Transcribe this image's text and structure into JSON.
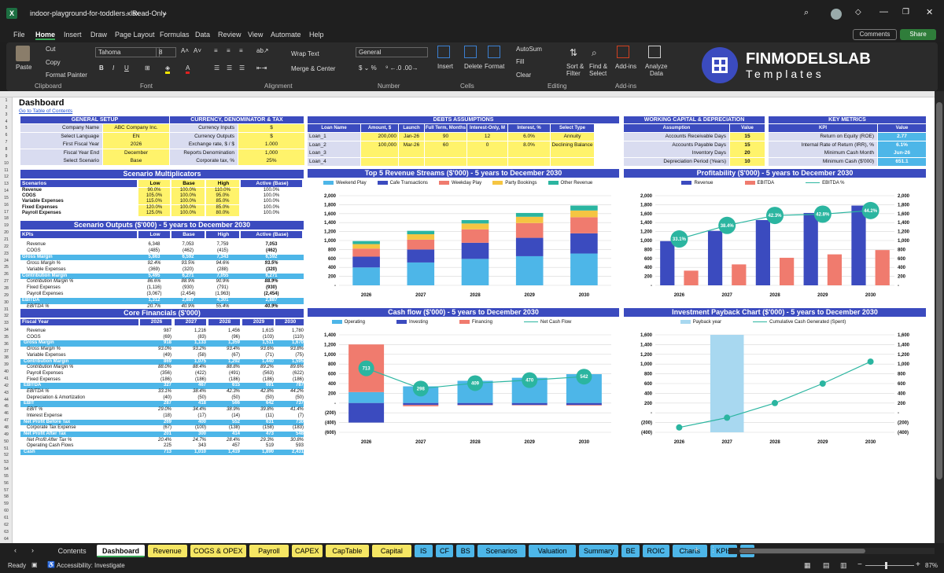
{
  "window": {
    "filename": "indoor-playground-for-toddlers.xlsx",
    "mode": "Read-Only"
  },
  "menu": [
    "File",
    "Home",
    "Insert",
    "Draw",
    "Page Layout",
    "Formulas",
    "Data",
    "Review",
    "View",
    "Automate",
    "Help"
  ],
  "actions": {
    "comments": "Comments",
    "share": "Share"
  },
  "ribbon": {
    "paste": "Paste",
    "cut": "Cut",
    "copy": "Copy",
    "format_painter": "Format Painter",
    "clipboard": "Clipboard",
    "font_name": "Tahoma",
    "font_size": "8",
    "font_group": "Font",
    "wrap_text": "Wrap Text",
    "merge_center": "Merge & Center",
    "alignment": "Alignment",
    "number_format": "General",
    "number": "Number",
    "insert": "Insert",
    "delete": "Delete",
    "format": "Format",
    "cells": "Cells",
    "autosum": "AutoSum",
    "fill": "Fill",
    "clear": "Clear",
    "sort_filter": "Sort &",
    "sort_filter2": "Filter",
    "find_select": "Find &",
    "find_select2": "Select",
    "editing": "Editing",
    "addins": "Add-ins",
    "addins_group": "Add-ins",
    "analyze": "Analyze",
    "analyze2": "Data"
  },
  "brand": {
    "name": "FINMODELSLAB",
    "sub": "Templates"
  },
  "sheet": {
    "title": "Dashboard",
    "toc": "Go to Table of Contents"
  },
  "general_setup": {
    "header": "GENERAL SETUP",
    "rows": [
      [
        "Company Name",
        "ABC Company Inc."
      ],
      [
        "Select Language",
        "EN"
      ],
      [
        "First Fiscal Year",
        "2026"
      ],
      [
        "Fiscal Year End",
        "December"
      ],
      [
        "Select Scenario",
        "Base"
      ]
    ]
  },
  "currency": {
    "header": "CURRENCY, DENOMINATOR & TAX",
    "rows": [
      [
        "Currency Inputs",
        "$"
      ],
      [
        "Currency Outputs",
        "$"
      ],
      [
        "Exchange rate, $ / $",
        "1.000"
      ],
      [
        "Reports Denomination",
        "1,000"
      ],
      [
        "Corporate tax, %",
        "25%"
      ]
    ]
  },
  "debts": {
    "header": "DEBTS ASSUMPTIONS",
    "cols": [
      "Loan Name",
      "Amount, $",
      "Launch",
      "Full Term, Months",
      "Interest-Only, M",
      "Interest, %",
      "Select Type"
    ],
    "rows": [
      [
        "Loan_1",
        "200,000",
        "Jan-26",
        "90",
        "12",
        "6.0%",
        "Annuity"
      ],
      [
        "Loan_2",
        "100,000",
        "Mar-26",
        "60",
        "0",
        "8.0%",
        "Declining Balance"
      ],
      [
        "Loan_3",
        "",
        "",
        "",
        "",
        "",
        ""
      ],
      [
        "Loan_4",
        "",
        "",
        "",
        "",
        "",
        ""
      ]
    ]
  },
  "wc": {
    "header": "WORKING CAPITAL & DEPRECIATION",
    "cols": [
      "Assumption",
      "Value"
    ],
    "rows": [
      [
        "Accounts Receivable Days",
        "15"
      ],
      [
        "Accounts Payable Days",
        "15"
      ],
      [
        "Inventory Days",
        "20"
      ],
      [
        "Depreciation Period (Years)",
        "10"
      ]
    ]
  },
  "kpi": {
    "header": "KEY METRICS",
    "cols": [
      "KPI",
      "Value"
    ],
    "rows": [
      [
        "Return on Equity (ROE)",
        "2.77"
      ],
      [
        "Internal Rate of Return (IRR), %",
        "6.1%"
      ],
      [
        "Minimum Cash Month",
        "Jun-26"
      ],
      [
        "Minimum Cash ($'000)",
        "651.1"
      ]
    ]
  },
  "scen_mult": {
    "header": "Scenario Multiplicators",
    "cols": [
      "Scenarios",
      "Low",
      "Base",
      "High",
      "Active (Base)"
    ],
    "rows": [
      [
        "Revenue",
        "90.0%",
        "100.0%",
        "110.0%",
        "100.0%"
      ],
      [
        "COGS",
        "105.0%",
        "100.0%",
        "95.0%",
        "100.0%"
      ],
      [
        "Variable Expenses",
        "115.0%",
        "100.0%",
        "85.0%",
        "100.0%"
      ],
      [
        "Fixed Expenses",
        "120.0%",
        "100.0%",
        "85.0%",
        "100.0%"
      ],
      [
        "Payroll Expenses",
        "125.0%",
        "100.0%",
        "80.0%",
        "100.0%"
      ]
    ]
  },
  "scen_out": {
    "header": "Scenario Outputs ($'000) - 5 years to December 2030",
    "cols": [
      "KPIs",
      "Low",
      "Base",
      "High",
      "Active (Base)"
    ],
    "rows": [
      [
        "Revenue",
        "6,348",
        "7,053",
        "7,759",
        "7,053",
        ""
      ],
      [
        "COGS",
        "(485)",
        "(462)",
        "(415)",
        "(462)",
        ""
      ],
      [
        "Gross Margin",
        "5,863",
        "6,592",
        "7,343",
        "6,592",
        "hl"
      ],
      [
        "Gross Margin %",
        "92.4%",
        "93.5%",
        "94.6%",
        "93.5%",
        "it"
      ],
      [
        "Variable Expenses",
        "(369)",
        "(320)",
        "(288)",
        "(320)",
        ""
      ],
      [
        "Contribution Margin",
        "5,495",
        "6,271",
        "7,055",
        "6,271",
        "hl"
      ],
      [
        "Contribution Margin %",
        "86.6%",
        "88.9%",
        "90.9%",
        "88.9%",
        "it"
      ],
      [
        "Fixed Expenses",
        "(1,116)",
        "(930)",
        "(791)",
        "(930)",
        ""
      ],
      [
        "Payroll Expenses",
        "(3,067)",
        "(2,454)",
        "(1,963)",
        "(2,454)",
        ""
      ],
      [
        "EBITDA",
        "1,312",
        "2,887",
        "4,301",
        "2,887",
        "hl"
      ],
      [
        "EBITDA %",
        "20.7%",
        "40.9%",
        "55.4%",
        "40.9%",
        "it"
      ]
    ]
  },
  "core": {
    "header": "Core Financials ($'000)",
    "cols": [
      "Fiscal Year",
      "2026",
      "2027",
      "2028",
      "2029",
      "2030"
    ],
    "rows": [
      [
        "Revenue",
        "987",
        "1,216",
        "1,456",
        "1,615",
        "1,780",
        ""
      ],
      [
        "COGS",
        "(69)",
        "(83)",
        "(96)",
        "(103)",
        "(110)",
        ""
      ],
      [
        "Gross Margin",
        "918",
        "1,133",
        "1,359",
        "1,511",
        "1,670",
        "hl"
      ],
      [
        "Gross Margin %",
        "93.0%",
        "93.2%",
        "93.4%",
        "93.6%",
        "93.8%",
        "it"
      ],
      [
        "Variable Expenses",
        "(49)",
        "(58)",
        "(67)",
        "(71)",
        "(75)",
        ""
      ],
      [
        "Contribution Margin",
        "869",
        "1,075",
        "1,292",
        "1,440",
        "1,595",
        "hl"
      ],
      [
        "Contribution Margin %",
        "88.0%",
        "88.4%",
        "88.8%",
        "89.2%",
        "89.6%",
        "it"
      ],
      [
        "Payroll Expenses",
        "(356)",
        "(422)",
        "(491)",
        "(563)",
        "(622)",
        ""
      ],
      [
        "Fixed Expenses",
        "(186)",
        "(186)",
        "(186)",
        "(186)",
        "(186)",
        ""
      ],
      [
        "EBITDA",
        "327",
        "467",
        "615",
        "691",
        "787",
        "hl"
      ],
      [
        "EBITDA %",
        "33.1%",
        "38.4%",
        "42.3%",
        "42.8%",
        "44.2%",
        "it"
      ],
      [
        "Depreciation & Amortization",
        "(40)",
        "(50)",
        "(50)",
        "(50)",
        "(50)",
        ""
      ],
      [
        "EBIT",
        "287",
        "418",
        "566",
        "642",
        "737",
        "hl"
      ],
      [
        "EBIT %",
        "29.0%",
        "34.4%",
        "38.9%",
        "39.8%",
        "41.4%",
        "it"
      ],
      [
        "Interest Expense",
        "(18)",
        "(17)",
        "(14)",
        "(11)",
        "(7)",
        ""
      ],
      [
        "Net Profit Before Tax",
        "269",
        "400",
        "552",
        "631",
        "730",
        "hl"
      ],
      [
        "Corporate Tax Expense",
        "(67)",
        "(100)",
        "(138)",
        "(158)",
        "(183)",
        ""
      ],
      [
        "Net Profit After Tax",
        "201",
        "300",
        "414",
        "473",
        "548",
        "hl"
      ],
      [
        "Net Profit After Tax %",
        "20.4%",
        "24.7%",
        "28.4%",
        "29.3%",
        "30.8%",
        "it"
      ],
      [
        "Operating Cash Flows",
        "225",
        "343",
        "457",
        "519",
        "593",
        ""
      ],
      [
        "Cash",
        "713",
        "1,010",
        "1,419",
        "1,890",
        "2,431",
        "hl"
      ]
    ]
  },
  "chart_data": [
    {
      "type": "bar",
      "title": "Top 5 Revenue Streams ($'000) - 5 years to December 2030",
      "categories": [
        "2026",
        "2027",
        "2028",
        "2029",
        "2030"
      ],
      "ylim": [
        0,
        2000
      ],
      "yticks": [
        "-",
        "200",
        "400",
        "600",
        "800",
        "1,000",
        "1,200",
        "1,400",
        "1,600",
        "1,800",
        "2,000"
      ],
      "series": [
        {
          "name": "Weekend Play",
          "color": "#4db6e8",
          "values": [
            400,
            510,
            590,
            650,
            710
          ]
        },
        {
          "name": "Cafe Transactions",
          "color": "#3b4bbf",
          "values": [
            240,
            290,
            360,
            410,
            450
          ]
        },
        {
          "name": "Weekday Play",
          "color": "#f07b6e",
          "values": [
            180,
            220,
            300,
            330,
            360
          ]
        },
        {
          "name": "Party Bookings",
          "color": "#f5c542",
          "values": [
            100,
            120,
            130,
            140,
            150
          ]
        },
        {
          "name": "Other Revenue",
          "color": "#2bb5a0",
          "values": [
            67,
            76,
            76,
            85,
            110
          ]
        }
      ]
    },
    {
      "type": "bar+line",
      "title": "Profitability ($'000) - 5 years to December 2030",
      "categories": [
        "2026",
        "2027",
        "2028",
        "2029",
        "2030"
      ],
      "ylim": [
        0,
        2000
      ],
      "yticks": [
        "-",
        "200",
        "400",
        "600",
        "800",
        "1,000",
        "1,200",
        "1,400",
        "1,600",
        "1,800",
        "2,000"
      ],
      "series": [
        {
          "name": "Revenue",
          "color": "#3b4bbf",
          "values": [
            987,
            1216,
            1456,
            1615,
            1780
          ]
        },
        {
          "name": "EBITDA",
          "color": "#f07b6e",
          "values": [
            327,
            467,
            615,
            691,
            787
          ]
        },
        {
          "name": "EBITDA %",
          "color": "#2bb5a0",
          "values": [
            33.1,
            38.4,
            42.3,
            42.8,
            44.2
          ],
          "labels": [
            "33.1%",
            "38.4%",
            "42.3%",
            "42.8%",
            "44.2%"
          ]
        }
      ]
    },
    {
      "type": "bar+line",
      "title": "Cash flow ($'000) - 5 years to December 2030",
      "categories": [
        "2026",
        "2027",
        "2028",
        "2029",
        "2030"
      ],
      "ylim": [
        -600,
        1400
      ],
      "yticks": [
        "(600)",
        "(400)",
        "(200)",
        "-",
        "200",
        "400",
        "600",
        "800",
        "1,000",
        "1,200",
        "1,400"
      ],
      "series": [
        {
          "name": "Operating",
          "color": "#4db6e8",
          "values": [
            225,
            343,
            457,
            519,
            593
          ]
        },
        {
          "name": "Investing",
          "color": "#3b4bbf",
          "values": [
            -400,
            -40,
            -40,
            -40,
            -40
          ]
        },
        {
          "name": "Financing",
          "color": "#f07b6e",
          "values": [
            978,
            -26,
            -8,
            -8,
            -12
          ]
        },
        {
          "name": "Net Cash Flow",
          "color": "#2bb5a0",
          "values": [
            713,
            298,
            409,
            470,
            542
          ],
          "labels": [
            "713",
            "298",
            "409",
            "470",
            "542"
          ]
        }
      ]
    },
    {
      "type": "bar+line",
      "title": "Investment Payback Chart ($'000) - 5 years to December 2030",
      "categories": [
        "2026",
        "2027",
        "2028",
        "2029",
        "2030"
      ],
      "ylim": [
        -400,
        1600
      ],
      "yticks": [
        "(400)",
        "(200)",
        "-",
        "200",
        "400",
        "600",
        "800",
        "1,000",
        "1,200",
        "1,400",
        "1,600"
      ],
      "series": [
        {
          "name": "Payback year",
          "color": "#a8d8f0",
          "values": [
            0,
            1,
            0,
            0,
            0
          ]
        },
        {
          "name": "Cumulative Cash Generated (Spent)",
          "color": "#2bb5a0",
          "values": [
            -300,
            -100,
            200,
            600,
            1050
          ]
        }
      ]
    }
  ],
  "sheet_tabs": [
    {
      "name": "Contents",
      "c": "#1f1f1f",
      "t": "#ddd"
    },
    {
      "name": "Dashboard",
      "c": "#fff",
      "t": "#000"
    },
    {
      "name": "Revenue",
      "c": "#f5e663"
    },
    {
      "name": "COGS & OPEX",
      "c": "#f5e663"
    },
    {
      "name": "Payroll",
      "c": "#f5e663"
    },
    {
      "name": "CAPEX",
      "c": "#f5e663"
    },
    {
      "name": "CapTable",
      "c": "#f5e663"
    },
    {
      "name": "Capital",
      "c": "#f5e663"
    },
    {
      "name": "IS",
      "c": "#4db6e8"
    },
    {
      "name": "CF",
      "c": "#4db6e8"
    },
    {
      "name": "BS",
      "c": "#4db6e8"
    },
    {
      "name": "Scenarios",
      "c": "#4db6e8"
    },
    {
      "name": "Valuation",
      "c": "#4db6e8"
    },
    {
      "name": "Summary",
      "c": "#4db6e8"
    },
    {
      "name": "BE",
      "c": "#4db6e8"
    },
    {
      "name": "ROIC",
      "c": "#4db6e8"
    },
    {
      "name": "Charts",
      "c": "#4db6e8"
    },
    {
      "name": "KPIs",
      "c": "#4db6e8"
    },
    {
      "name": "S",
      "c": "#4db6e8"
    }
  ],
  "status": {
    "ready": "Ready",
    "accessibility": "Accessibility: Investigate",
    "zoom": "87%"
  }
}
